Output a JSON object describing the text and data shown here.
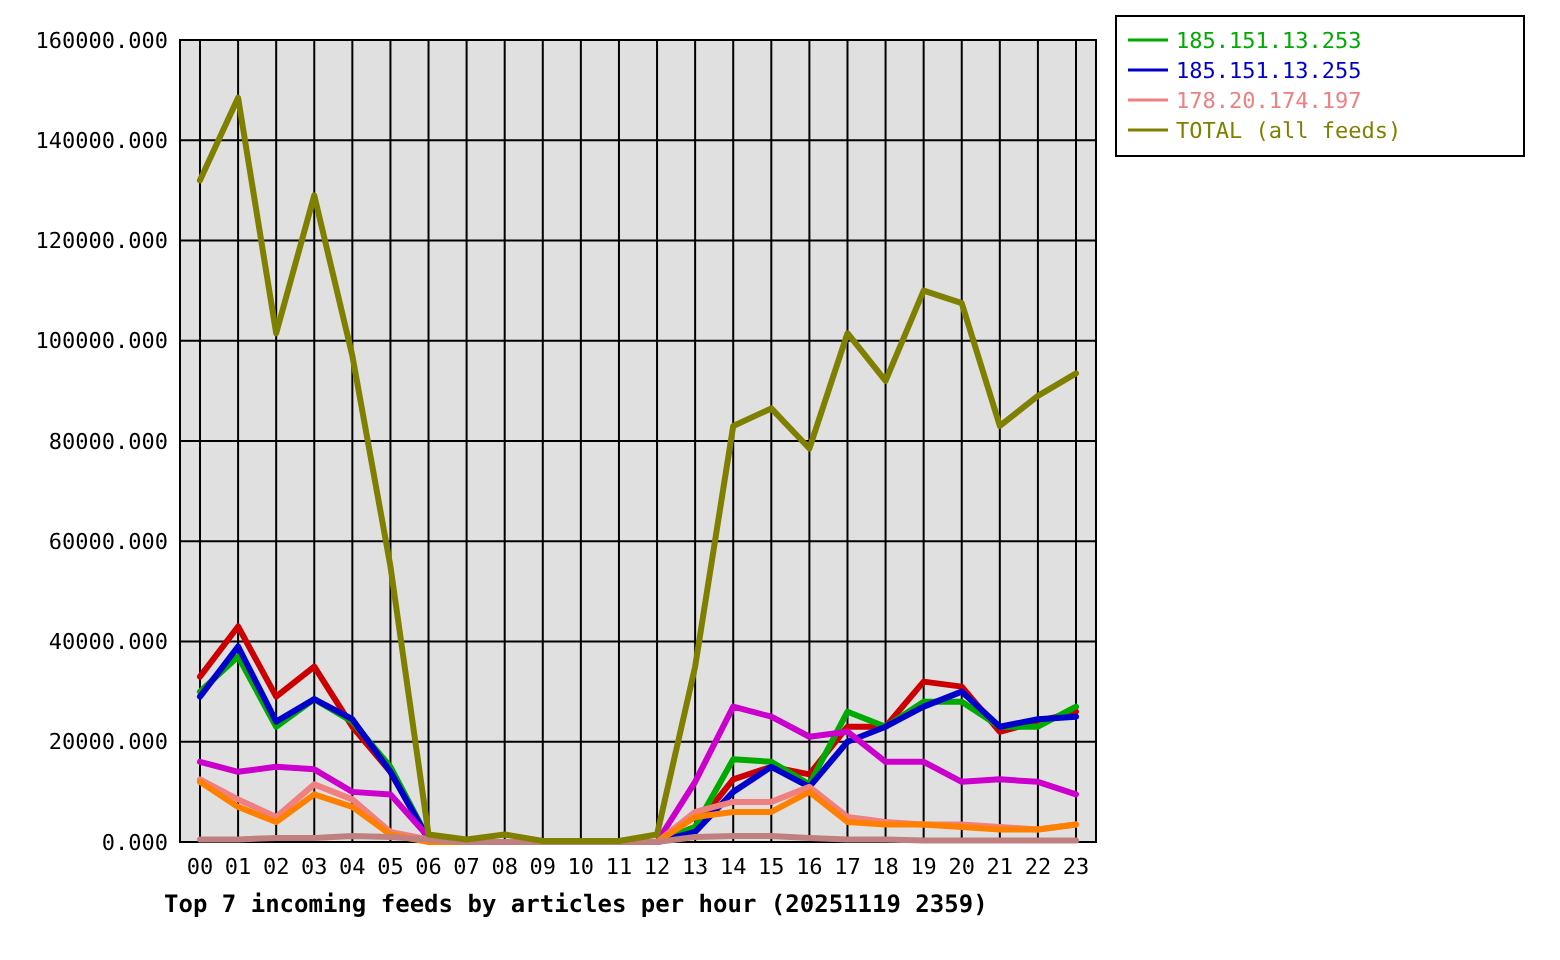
{
  "chart_data": {
    "type": "line",
    "title": "Top 7 incoming feeds by articles per hour (20251119 2359)",
    "categories": [
      "00",
      "01",
      "02",
      "03",
      "04",
      "05",
      "06",
      "07",
      "08",
      "09",
      "10",
      "11",
      "12",
      "13",
      "14",
      "15",
      "16",
      "17",
      "18",
      "19",
      "20",
      "21",
      "22",
      "23"
    ],
    "ylim": [
      0,
      160000
    ],
    "yticks": [
      {
        "value": 0,
        "label": "0.000"
      },
      {
        "value": 20000,
        "label": "20000.000"
      },
      {
        "value": 40000,
        "label": "40000.000"
      },
      {
        "value": 60000,
        "label": "60000.000"
      },
      {
        "value": 80000,
        "label": "80000.000"
      },
      {
        "value": 100000,
        "label": "100000.000"
      },
      {
        "value": 120000,
        "label": "120000.000"
      },
      {
        "value": 140000,
        "label": "140000.000"
      },
      {
        "value": 160000,
        "label": "160000.000"
      }
    ],
    "grid": true,
    "legend": "top right",
    "line_style": "solid",
    "series": [
      {
        "color": "#cc0000",
        "values": [
          33000,
          43000,
          29000,
          35000,
          23000,
          14000,
          500,
          0,
          0,
          0,
          0,
          0,
          0,
          3000,
          12500,
          15000,
          13500,
          23000,
          23000,
          32000,
          31000,
          22000,
          24000,
          26000
        ]
      },
      {
        "name": "185.151.13.253",
        "color": "#00aa00",
        "values": [
          30000,
          37000,
          23000,
          28500,
          24000,
          15000,
          500,
          0,
          0,
          0,
          0,
          0,
          0,
          3000,
          16500,
          16000,
          11500,
          26000,
          23000,
          28000,
          28000,
          23000,
          23000,
          27000
        ]
      },
      {
        "name": "185.151.13.255",
        "color": "#0000cc",
        "values": [
          29000,
          39000,
          24000,
          28500,
          24500,
          14000,
          500,
          0,
          0,
          0,
          0,
          0,
          0,
          2000,
          10000,
          15000,
          11000,
          20000,
          23000,
          27000,
          30000,
          23000,
          24500,
          25000
        ]
      },
      {
        "color": "#cc00cc",
        "values": [
          16000,
          14000,
          15000,
          14500,
          10000,
          9500,
          1000,
          0,
          0,
          0,
          0,
          0,
          0,
          12000,
          27000,
          25000,
          21000,
          22000,
          16000,
          16000,
          12000,
          12500,
          12000,
          9500
        ]
      },
      {
        "name": "178.20.174.197",
        "color": "#f08080",
        "values": [
          12500,
          8500,
          5000,
          11500,
          8500,
          2000,
          500,
          0,
          0,
          0,
          0,
          0,
          0,
          6000,
          8000,
          8000,
          11000,
          5000,
          4000,
          3500,
          3500,
          3000,
          2500,
          3500
        ]
      },
      {
        "color": "#ff8000",
        "values": [
          12000,
          7000,
          4000,
          9500,
          7000,
          1500,
          0,
          0,
          0,
          0,
          0,
          0,
          0,
          5000,
          6000,
          6000,
          10000,
          4000,
          3500,
          3500,
          3000,
          2500,
          2500,
          3500
        ]
      },
      {
        "color": "#c08080",
        "values": [
          500,
          500,
          800,
          800,
          1200,
          1000,
          500,
          0,
          0,
          0,
          0,
          0,
          0,
          1000,
          1200,
          1200,
          800,
          500,
          500,
          300,
          300,
          300,
          300,
          300
        ]
      },
      {
        "name": "TOTAL (all feeds)",
        "color": "#808000",
        "values": [
          132000,
          148500,
          101500,
          129000,
          97000,
          55000,
          1500,
          500,
          1500,
          200,
          200,
          200,
          1500,
          35000,
          83000,
          86500,
          78500,
          101500,
          92000,
          110000,
          107500,
          83000,
          89000,
          93500
        ]
      }
    ]
  }
}
